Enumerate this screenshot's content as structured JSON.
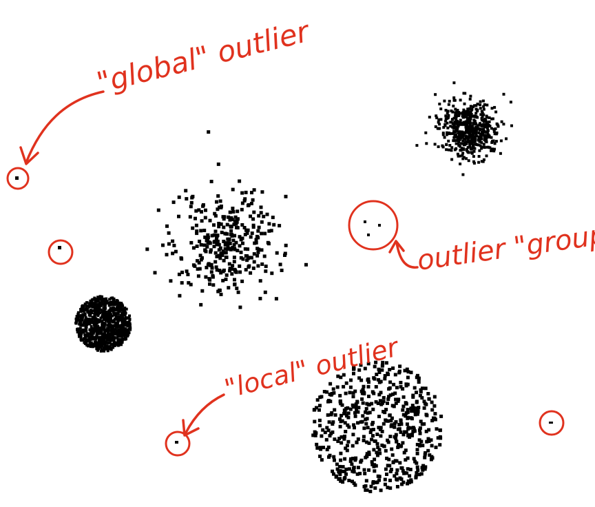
{
  "colors": {
    "annotation": "#e0321e",
    "points": "#000000",
    "background": "#ffffff"
  },
  "annotations": {
    "global_label": "\"global\" outlier",
    "group_label": "outlier \"group\"",
    "local_label": "\"local\" outlier"
  },
  "clusters": [
    {
      "name": "dense-small-cluster-top-right",
      "style": "dense"
    },
    {
      "name": "loose-cluster-center",
      "style": "sparse"
    },
    {
      "name": "dense-disc-cluster-left",
      "style": "disc"
    },
    {
      "name": "sparse-disc-cluster-bottom",
      "style": "disc-sparse"
    }
  ],
  "outliers": [
    {
      "name": "global-outlier",
      "kind": "global"
    },
    {
      "name": "outlier-left-mid",
      "kind": "single"
    },
    {
      "name": "outlier-group",
      "kind": "group",
      "count": 3
    },
    {
      "name": "local-outlier",
      "kind": "local"
    },
    {
      "name": "outlier-bottom-right",
      "kind": "single"
    }
  ]
}
